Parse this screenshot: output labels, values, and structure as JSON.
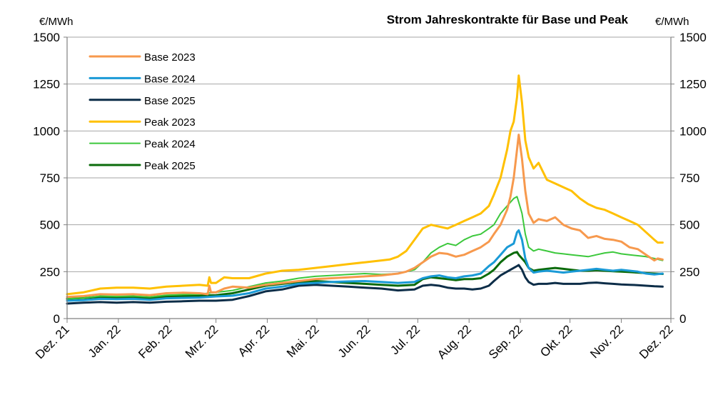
{
  "chart_data": {
    "type": "line",
    "title": "Strom Jahreskontrakte für Base und Peak",
    "ylabel_left": "€/MWh",
    "ylabel_right": "€/MWh",
    "ylim": [
      0,
      1500
    ],
    "yticks": [
      0,
      250,
      500,
      750,
      1000,
      1250,
      1500
    ],
    "xlim": [
      0,
      365
    ],
    "xtick_positions": [
      0,
      31,
      62,
      90,
      121,
      151,
      182,
      212,
      243,
      274,
      304,
      335,
      365
    ],
    "xtick_labels": [
      "Dez. 21",
      "Jan. 22",
      "Feb. 22",
      "Mrz. 22",
      "Apr. 22",
      "Mai. 22",
      "Jun. 22",
      "Jul. 22",
      "Aug. 22",
      "Sep. 22",
      "Okt. 22",
      "Nov. 22",
      "Dez. 22"
    ],
    "grid": "horizontal",
    "legend_position": "top-left",
    "series": [
      {
        "name": "Base 2023",
        "color": "#F7994D",
        "x": [
          0,
          10,
          20,
          30,
          40,
          50,
          60,
          70,
          80,
          85,
          86,
          87,
          90,
          95,
          100,
          110,
          120,
          130,
          140,
          150,
          160,
          170,
          180,
          190,
          195,
          200,
          205,
          210,
          215,
          220,
          225,
          230,
          235,
          240,
          245,
          250,
          255,
          258,
          262,
          266,
          268,
          270,
          272,
          273,
          275,
          277,
          279,
          282,
          285,
          290,
          295,
          300,
          305,
          310,
          315,
          320,
          325,
          330,
          335,
          340,
          345,
          350,
          355,
          357,
          360
        ],
        "y": [
          115,
          120,
          130,
          128,
          130,
          125,
          135,
          138,
          135,
          130,
          175,
          140,
          140,
          160,
          170,
          165,
          180,
          190,
          200,
          210,
          215,
          220,
          225,
          230,
          235,
          240,
          250,
          270,
          300,
          330,
          350,
          345,
          330,
          340,
          360,
          380,
          410,
          450,
          500,
          580,
          650,
          750,
          900,
          980,
          850,
          680,
          560,
          510,
          530,
          520,
          540,
          500,
          480,
          470,
          430,
          440,
          425,
          420,
          410,
          380,
          370,
          340,
          310,
          320,
          315
        ]
      },
      {
        "name": "Base 2024",
        "color": "#1A9AD6",
        "x": [
          0,
          10,
          20,
          30,
          40,
          50,
          60,
          70,
          80,
          90,
          100,
          110,
          120,
          130,
          140,
          150,
          160,
          170,
          180,
          190,
          200,
          210,
          215,
          220,
          225,
          230,
          235,
          240,
          245,
          250,
          255,
          258,
          262,
          266,
          270,
          272,
          273,
          275,
          277,
          279,
          282,
          285,
          290,
          295,
          300,
          305,
          310,
          315,
          320,
          325,
          330,
          335,
          340,
          345,
          350,
          355,
          360
        ],
        "y": [
          95,
          98,
          105,
          103,
          105,
          100,
          108,
          110,
          112,
          118,
          122,
          135,
          160,
          170,
          185,
          190,
          195,
          198,
          200,
          195,
          190,
          195,
          215,
          225,
          230,
          220,
          215,
          225,
          230,
          240,
          280,
          300,
          340,
          380,
          400,
          460,
          470,
          420,
          320,
          270,
          245,
          250,
          255,
          250,
          245,
          250,
          255,
          260,
          265,
          260,
          255,
          260,
          255,
          250,
          240,
          235,
          240
        ]
      },
      {
        "name": "Base 2025",
        "color": "#0C2D48",
        "x": [
          0,
          10,
          20,
          30,
          40,
          50,
          60,
          70,
          80,
          90,
          100,
          110,
          120,
          130,
          140,
          150,
          160,
          170,
          180,
          190,
          200,
          210,
          215,
          220,
          225,
          230,
          235,
          240,
          245,
          250,
          255,
          258,
          262,
          266,
          270,
          272,
          273,
          275,
          277,
          279,
          282,
          285,
          290,
          295,
          300,
          305,
          310,
          315,
          320,
          325,
          330,
          335,
          340,
          345,
          350,
          355,
          360
        ],
        "y": [
          80,
          85,
          88,
          85,
          88,
          85,
          90,
          92,
          95,
          95,
          100,
          120,
          145,
          155,
          175,
          180,
          175,
          170,
          165,
          160,
          150,
          155,
          175,
          180,
          175,
          165,
          160,
          160,
          155,
          160,
          175,
          200,
          230,
          250,
          270,
          280,
          285,
          260,
          220,
          195,
          180,
          185,
          185,
          190,
          185,
          185,
          185,
          190,
          192,
          188,
          185,
          182,
          180,
          178,
          175,
          172,
          170
        ]
      },
      {
        "name": "Peak 2023",
        "color": "#FFC000",
        "x": [
          0,
          10,
          20,
          30,
          40,
          50,
          60,
          70,
          80,
          85,
          86,
          87,
          90,
          95,
          100,
          110,
          120,
          130,
          140,
          150,
          160,
          170,
          180,
          190,
          195,
          200,
          205,
          210,
          215,
          220,
          225,
          230,
          235,
          240,
          245,
          250,
          255,
          258,
          262,
          266,
          268,
          270,
          272,
          273,
          275,
          277,
          279,
          282,
          285,
          290,
          295,
          300,
          305,
          310,
          315,
          320,
          325,
          330,
          335,
          340,
          345,
          350,
          355,
          357,
          360
        ],
        "y": [
          130,
          140,
          160,
          165,
          165,
          160,
          170,
          175,
          180,
          175,
          220,
          190,
          190,
          220,
          215,
          215,
          240,
          255,
          260,
          270,
          280,
          290,
          300,
          310,
          315,
          330,
          360,
          420,
          480,
          500,
          490,
          480,
          500,
          520,
          540,
          560,
          600,
          660,
          750,
          900,
          1000,
          1050,
          1180,
          1295,
          1150,
          950,
          860,
          800,
          830,
          740,
          720,
          700,
          680,
          640,
          610,
          590,
          580,
          560,
          540,
          520,
          500,
          460,
          420,
          405,
          405
        ]
      },
      {
        "name": "Peak 2024",
        "color": "#3CC83C",
        "x": [
          0,
          10,
          20,
          30,
          40,
          50,
          60,
          70,
          80,
          90,
          100,
          110,
          120,
          130,
          140,
          150,
          160,
          170,
          180,
          190,
          200,
          210,
          215,
          220,
          225,
          230,
          235,
          240,
          245,
          250,
          255,
          258,
          262,
          266,
          270,
          272,
          273,
          275,
          277,
          279,
          282,
          285,
          290,
          295,
          300,
          305,
          310,
          315,
          320,
          325,
          330,
          335,
          340,
          345,
          350,
          355,
          360
        ],
        "y": [
          105,
          110,
          120,
          118,
          120,
          115,
          125,
          128,
          130,
          140,
          150,
          170,
          190,
          200,
          215,
          225,
          230,
          235,
          240,
          235,
          240,
          260,
          300,
          350,
          380,
          400,
          390,
          420,
          440,
          450,
          480,
          500,
          560,
          600,
          640,
          650,
          620,
          560,
          450,
          380,
          360,
          370,
          360,
          350,
          345,
          340,
          335,
          330,
          340,
          350,
          355,
          345,
          340,
          335,
          330,
          320,
          310
        ]
      },
      {
        "name": "Peak 2025",
        "color": "#0B6B0B",
        "x": [
          0,
          10,
          20,
          30,
          40,
          50,
          60,
          70,
          80,
          90,
          100,
          110,
          120,
          130,
          140,
          150,
          160,
          170,
          180,
          190,
          200,
          210,
          215,
          220,
          225,
          230,
          235,
          240,
          245,
          250,
          255,
          258,
          262,
          266,
          270,
          272,
          273,
          275,
          277,
          279,
          282,
          285,
          290,
          295,
          300,
          305,
          310,
          315,
          320,
          325,
          330,
          335,
          340,
          345,
          350,
          355,
          360
        ],
        "y": [
          105,
          110,
          115,
          112,
          115,
          110,
          118,
          120,
          122,
          125,
          135,
          155,
          175,
          185,
          195,
          200,
          195,
          190,
          185,
          180,
          175,
          180,
          210,
          220,
          215,
          210,
          205,
          210,
          210,
          215,
          240,
          260,
          300,
          330,
          350,
          355,
          340,
          320,
          300,
          270,
          255,
          260,
          265,
          270,
          265,
          260,
          255,
          255,
          258,
          255,
          252,
          250,
          248,
          245,
          242,
          240,
          238
        ]
      }
    ]
  }
}
